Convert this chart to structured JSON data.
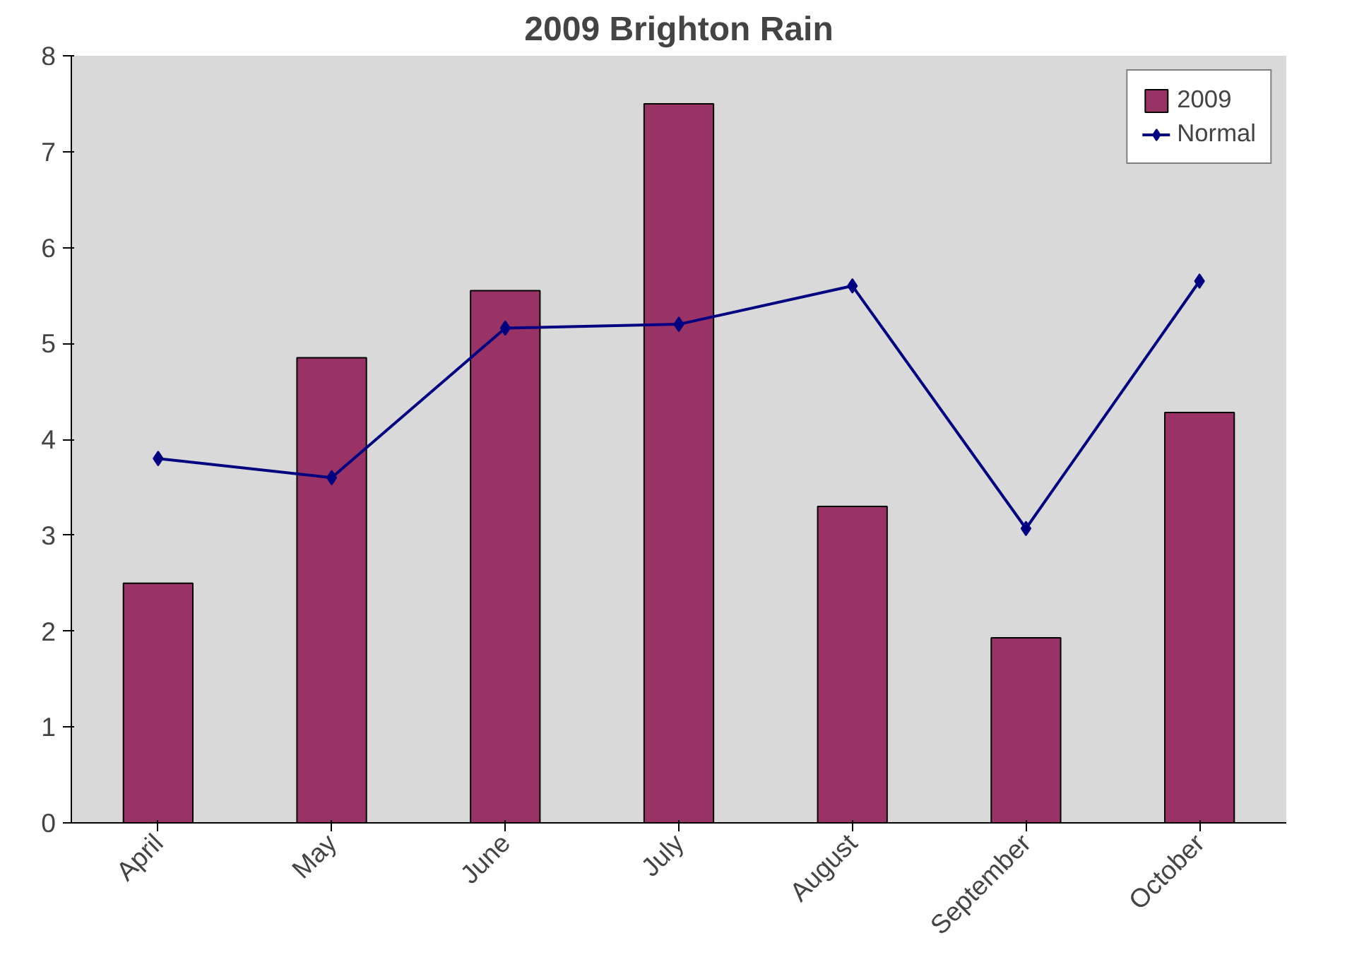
{
  "chart_data": {
    "type": "bar",
    "title": "2009 Brighton Rain",
    "categories": [
      "April",
      "May",
      "June",
      "July",
      "August",
      "September",
      "October"
    ],
    "series": [
      {
        "name": "2009",
        "color": "#993366",
        "values": [
          2.5,
          4.85,
          5.55,
          7.5,
          3.3,
          1.93,
          4.28
        ]
      },
      {
        "name": "Normal",
        "type": "line",
        "color": "#000080",
        "marker": "diamond",
        "values": [
          3.8,
          3.6,
          5.16,
          5.2,
          5.6,
          3.07,
          5.65
        ]
      }
    ],
    "ylim": [
      0,
      8
    ],
    "yticks": [
      0,
      1,
      2,
      3,
      4,
      5,
      6,
      7,
      8
    ],
    "grid": false,
    "legend": "top right"
  }
}
